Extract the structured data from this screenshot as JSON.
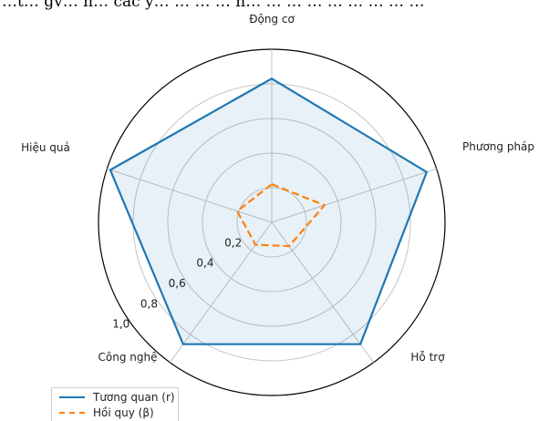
{
  "banner_text": "…t… gv… n… các y… … … … h… … … … … … … … …",
  "chart_data": {
    "type": "radar",
    "categories": [
      "Động cơ",
      "Phương pháp",
      "Hỗ trợ",
      "Công nghệ",
      "Hiệu quả"
    ],
    "radial_ticks": [
      "0,2",
      "0,4",
      "0,6",
      "0,8",
      "1,0"
    ],
    "radial_tick_values": [
      0.2,
      0.4,
      0.6,
      0.8,
      1.0
    ],
    "rlim": [
      0,
      1.0
    ],
    "grid": true,
    "legend_position": "bottom-left",
    "series": [
      {
        "name": "Tương quan (r)",
        "values": [
          0.83,
          0.94,
          0.87,
          0.87,
          0.98
        ],
        "color": "#1f77b4",
        "style": "solid",
        "fill": true
      },
      {
        "name": "Hồi quy (β)",
        "values": [
          0.22,
          0.32,
          0.17,
          0.16,
          0.21
        ],
        "color": "#ff7f0e",
        "style": "dashed",
        "fill": false
      }
    ]
  }
}
